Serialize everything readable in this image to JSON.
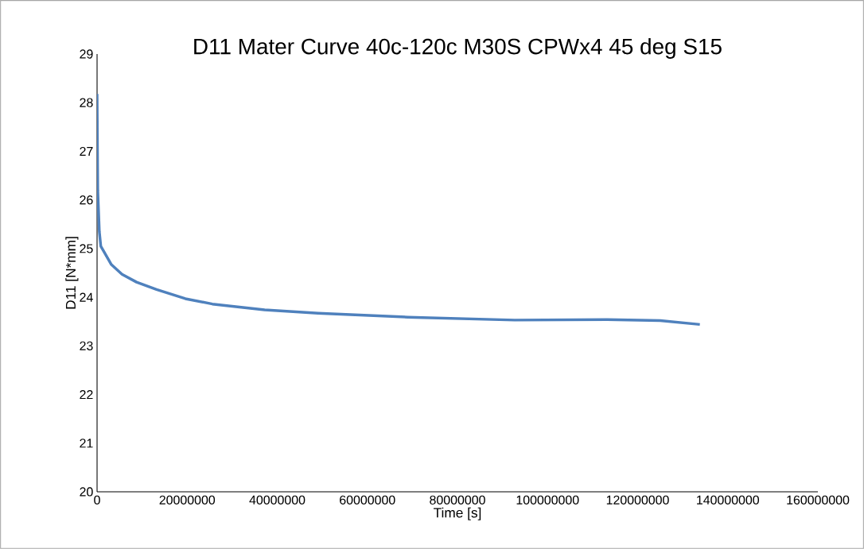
{
  "chart_data": {
    "type": "line",
    "title": "D11 Mater Curve 40c-120c M30S CPWx4 45 deg S15",
    "xlabel": "Time [s]",
    "ylabel": "D11 [N*mm]",
    "series": [
      {
        "color": "#4f81bd",
        "x": [
          0,
          150000,
          500000,
          830000,
          3180000,
          5540000,
          8770000,
          13200000,
          19600000,
          25600000,
          37200000,
          49100000,
          69000000,
          92700000,
          113200000,
          125000000,
          133800000
        ],
        "values": [
          28.18,
          26.2,
          25.35,
          25.05,
          24.67,
          24.47,
          24.31,
          24.16,
          23.97,
          23.86,
          23.74,
          23.67,
          23.59,
          23.53,
          23.54,
          23.52,
          23.44
        ]
      }
    ],
    "xlim": [
      0,
      160000000
    ],
    "xticks": [
      0,
      20000000,
      40000000,
      60000000,
      80000000,
      100000000,
      120000000,
      140000000,
      160000000
    ],
    "ylim": [
      20,
      29
    ],
    "yticks": [
      20,
      21,
      22,
      23,
      24,
      25,
      26,
      27,
      28,
      29
    ],
    "grid": false,
    "marker": "none",
    "line_style": "solid"
  }
}
